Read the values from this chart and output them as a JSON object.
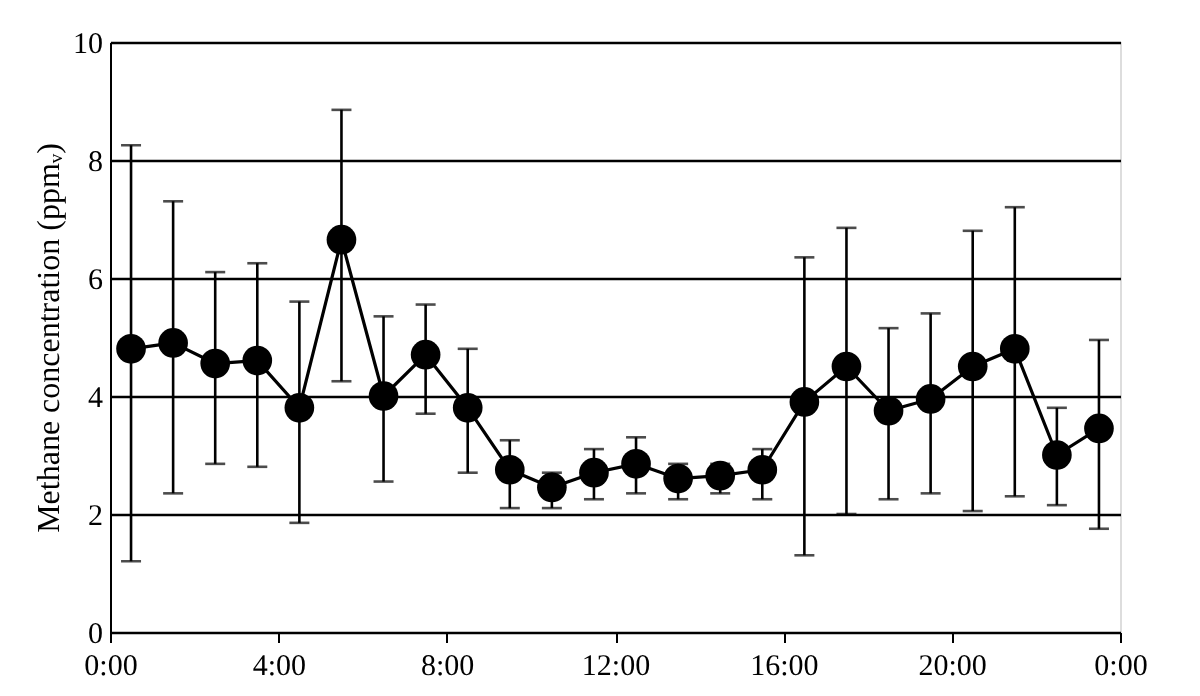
{
  "chart_data": {
    "type": "line",
    "ylabel": "Methane concentration (ppmᵥ)",
    "x": [
      0.5,
      1.5,
      2.5,
      3.5,
      4.5,
      5.5,
      6.5,
      7.5,
      8.5,
      9.5,
      10.5,
      11.5,
      12.5,
      13.5,
      14.5,
      15.5,
      16.5,
      17.5,
      18.5,
      19.5,
      20.5,
      21.5,
      22.5,
      23.5
    ],
    "series": [
      {
        "color": "#000000",
        "values": [
          4.8,
          4.9,
          4.55,
          4.6,
          3.8,
          6.65,
          4.0,
          4.7,
          3.8,
          2.75,
          2.45,
          2.7,
          2.85,
          2.6,
          2.65,
          2.75,
          3.9,
          4.5,
          3.75,
          3.95,
          4.5,
          4.8,
          3.0,
          3.45
        ],
        "errors": [
          [
            1.2,
            8.25
          ],
          [
            2.35,
            7.3
          ],
          [
            2.85,
            6.1
          ],
          [
            2.8,
            6.25
          ],
          [
            1.85,
            5.6
          ],
          [
            4.25,
            8.85
          ],
          [
            2.55,
            5.35
          ],
          [
            3.7,
            5.55
          ],
          [
            2.7,
            4.8
          ],
          [
            2.1,
            3.25
          ],
          [
            2.1,
            2.7
          ],
          [
            2.25,
            3.1
          ],
          [
            2.35,
            3.3
          ],
          [
            2.25,
            2.85
          ],
          [
            2.35,
            2.85
          ],
          [
            2.25,
            3.1
          ],
          [
            1.3,
            6.35
          ],
          [
            2.0,
            6.85
          ],
          [
            2.25,
            5.15
          ],
          [
            2.35,
            5.4
          ],
          [
            2.05,
            6.8
          ],
          [
            2.3,
            7.2
          ],
          [
            2.15,
            3.8
          ],
          [
            1.75,
            4.95
          ]
        ]
      }
    ],
    "xlim": [
      0,
      24
    ],
    "xticks": [
      {
        "value": 0,
        "label": "0:00"
      },
      {
        "value": 4,
        "label": "4:00"
      },
      {
        "value": 8,
        "label": "8:00"
      },
      {
        "value": 12,
        "label": "12:00"
      },
      {
        "value": 16,
        "label": "16:00"
      },
      {
        "value": 20,
        "label": "20:00"
      },
      {
        "value": 24,
        "label": "0:00"
      }
    ],
    "ylim": [
      0,
      10
    ],
    "yticks": [
      0,
      2,
      4,
      6,
      8,
      10
    ],
    "grid": "y",
    "marker": "circle",
    "line_style": "solid"
  }
}
